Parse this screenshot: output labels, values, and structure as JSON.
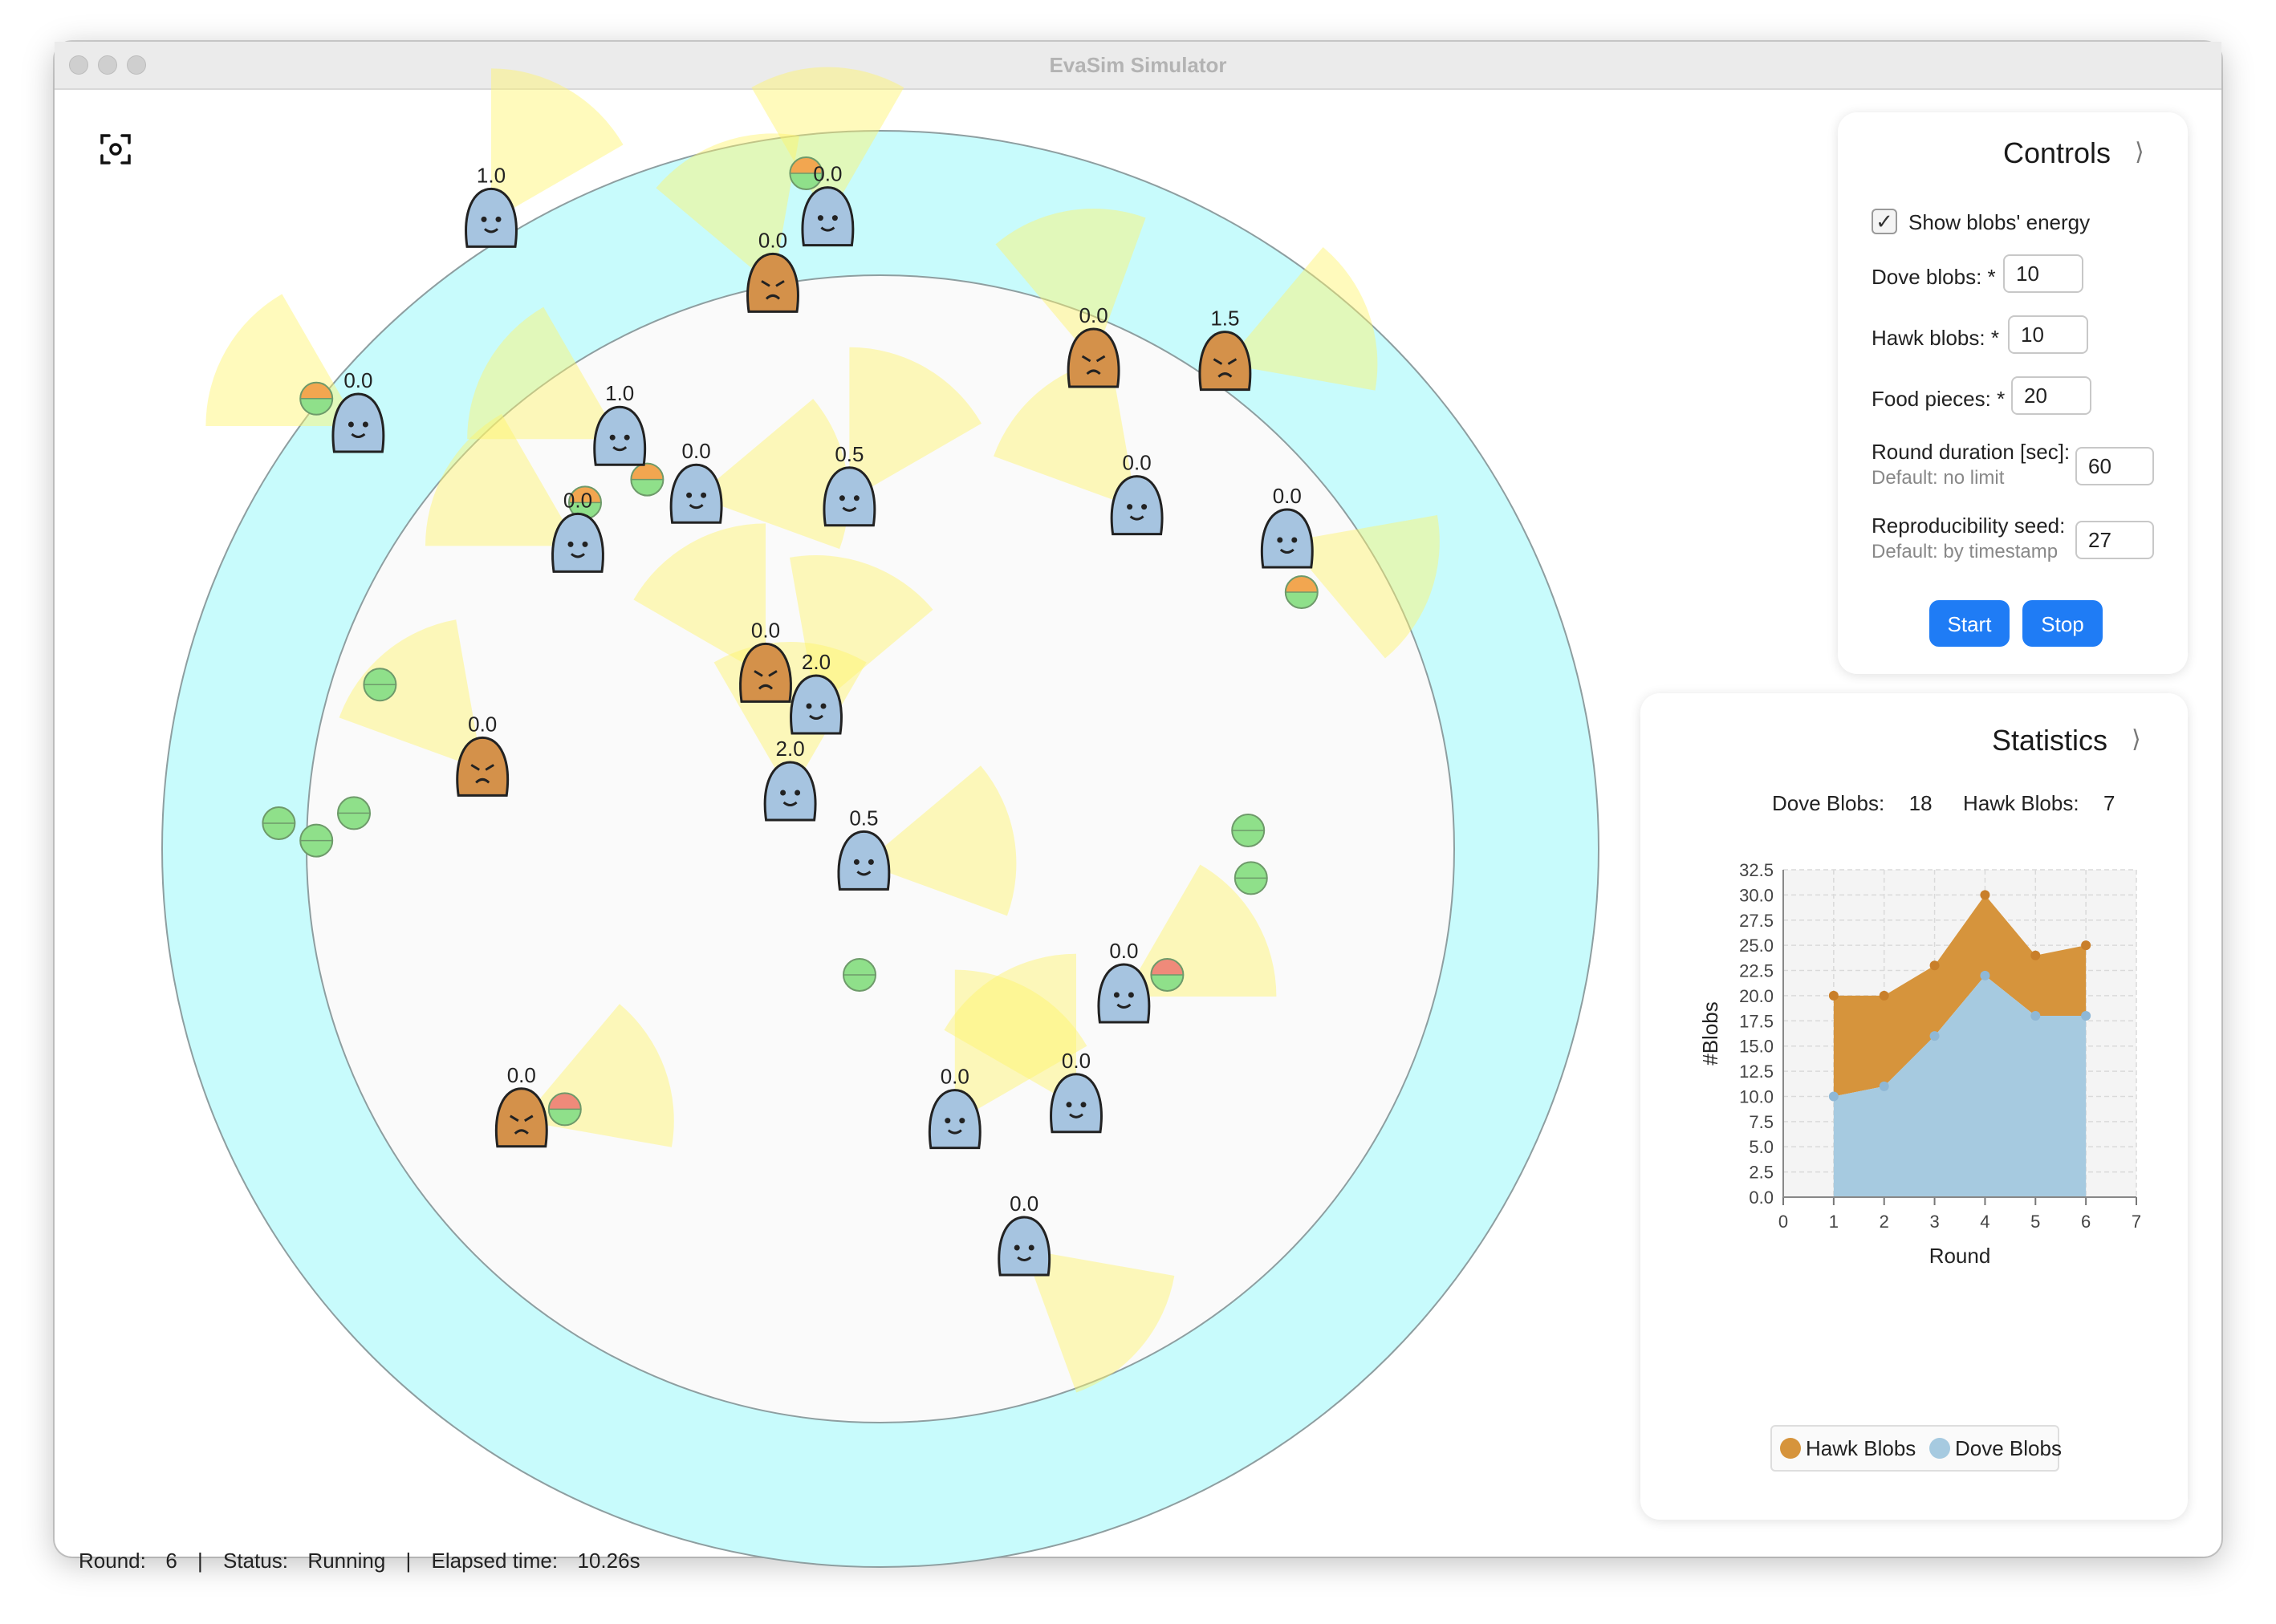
{
  "window": {
    "title": "EvaSim Simulator"
  },
  "arena": {
    "blobs": [
      {
        "kind": "dove",
        "energy": "1.0"
      },
      {
        "kind": "dove",
        "energy": "0.0"
      },
      {
        "kind": "hawk",
        "energy": "0.0"
      },
      {
        "kind": "hawk",
        "energy": "0.0"
      },
      {
        "kind": "hawk",
        "energy": "1.5"
      },
      {
        "kind": "dove",
        "energy": "0.0"
      },
      {
        "kind": "dove",
        "energy": "1.0"
      },
      {
        "kind": "dove",
        "energy": "0.0"
      },
      {
        "kind": "dove",
        "energy": "0.0"
      },
      {
        "kind": "dove",
        "energy": "0.5"
      },
      {
        "kind": "dove",
        "energy": "0.0"
      },
      {
        "kind": "dove",
        "energy": "0.0"
      },
      {
        "kind": "hawk",
        "energy": "0.0"
      },
      {
        "kind": "dove",
        "energy": "2.0"
      },
      {
        "kind": "hawk",
        "energy": "0.0"
      },
      {
        "kind": "dove",
        "energy": "2.0"
      },
      {
        "kind": "dove",
        "energy": "0.5"
      },
      {
        "kind": "dove",
        "energy": "0.0"
      },
      {
        "kind": "hawk",
        "energy": "0.0"
      },
      {
        "kind": "dove",
        "energy": "0.0"
      },
      {
        "kind": "dove",
        "energy": "0.0"
      },
      {
        "kind": "dove",
        "energy": "0.0"
      }
    ],
    "colors": {
      "ring": "#c8fbfc",
      "dove": "#a6c4e0",
      "hawk": "#d4914a",
      "food_fresh": "#8fe08a",
      "food_half": "#ef8a7a",
      "food_ripe": "#f2a650"
    }
  },
  "controls": {
    "title": "Controls",
    "show_energy_label": "Show blobs' energy",
    "show_energy_checked": true,
    "dove_label": "Dove blobs: *",
    "dove_value": "10",
    "hawk_label": "Hawk blobs: *",
    "hawk_value": "10",
    "food_label": "Food pieces: *",
    "food_value": "20",
    "duration_label": "Round duration [sec]:",
    "duration_hint": "Default: no limit",
    "duration_value": "60",
    "seed_label": "Reproducibility seed:",
    "seed_hint": "Default: by timestamp",
    "seed_value": "27",
    "start_label": "Start",
    "stop_label": "Stop"
  },
  "statistics": {
    "title": "Statistics",
    "dove_label": "Dove Blobs:",
    "dove_count": "18",
    "hawk_label": "Hawk Blobs:",
    "hawk_count": "7"
  },
  "chart_data": {
    "type": "area",
    "stacked": true,
    "xlabel": "Round",
    "ylabel": "#Blobs",
    "xlim": [
      0,
      7
    ],
    "ylim": [
      0,
      32.5
    ],
    "xticks": [
      "0",
      "1",
      "2",
      "3",
      "4",
      "5",
      "6",
      "7"
    ],
    "yticks": [
      "0.0",
      "2.5",
      "5.0",
      "7.5",
      "10.0",
      "12.5",
      "15.0",
      "17.5",
      "20.0",
      "22.5",
      "25.0",
      "27.5",
      "30.0",
      "32.5"
    ],
    "x": [
      1,
      2,
      3,
      4,
      5,
      6
    ],
    "series": [
      {
        "name": "Dove Blobs",
        "values": [
          10,
          11,
          16,
          22,
          18,
          18
        ],
        "color": "#a6cae0"
      },
      {
        "name": "Hawk Blobs",
        "values": [
          10,
          9,
          7,
          8,
          6,
          7
        ],
        "color": "#d6943c"
      }
    ],
    "legend": "bottom",
    "grid": true
  },
  "status": {
    "round_label": "Round:",
    "round_value": "6",
    "status_label": "Status:",
    "status_value": "Running",
    "elapsed_label": "Elapsed time:",
    "elapsed_value": "10.26s"
  }
}
